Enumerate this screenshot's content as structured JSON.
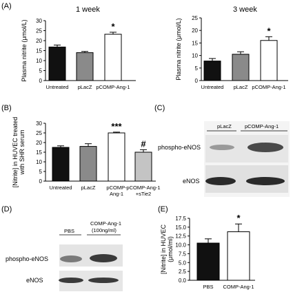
{
  "colors": {
    "black": "#111111",
    "gray": "#8a8a8a",
    "white": "#ffffff",
    "light": "#c4c4c4"
  },
  "chart_data": [
    {
      "panel": "(A)",
      "type": "bar",
      "title": "1 week",
      "ylabel": "Plasma nitrite (μmol/L)",
      "categories": [
        "Untreated",
        "pLacZ",
        "pCOMP-Ang-1"
      ],
      "values": [
        16.8,
        14.0,
        23.2
      ],
      "errors": [
        1.0,
        0.6,
        1.0
      ],
      "bar_colors": [
        "#111111",
        "#8a8a8a",
        "#ffffff"
      ],
      "ylim": [
        0,
        30
      ],
      "yticks": [
        "0",
        "5",
        "10",
        "15",
        "20",
        "25",
        "30"
      ],
      "annotations": [
        {
          "category": "pCOMP-Ang-1",
          "text": "*"
        }
      ]
    },
    {
      "panel": "",
      "type": "bar",
      "title": "3 week",
      "ylabel": "Plasma nitrite (μmol/L)",
      "categories": [
        "Untreated",
        "pLacZ",
        "pCOMP-Ang-1"
      ],
      "values": [
        7.8,
        10.5,
        16.0
      ],
      "errors": [
        1.0,
        1.0,
        1.5
      ],
      "bar_colors": [
        "#111111",
        "#8a8a8a",
        "#ffffff"
      ],
      "ylim": [
        0,
        25
      ],
      "yticks": [
        "0",
        "5",
        "10",
        "15",
        "20",
        "25"
      ],
      "annotations": [
        {
          "category": "pCOMP-Ang-1",
          "text": "*"
        }
      ]
    },
    {
      "panel": "(B)",
      "type": "bar",
      "title": "",
      "ylabel": "[Nitrite] in HUVEC treated with SHR serum",
      "categories": [
        "Untreated",
        "pLacZ",
        "pCOMP-Ang-1",
        "pCOMP-Ang-1 +sTie2"
      ],
      "values": [
        17.5,
        18.0,
        25.0,
        15.0
      ],
      "errors": [
        0.8,
        1.4,
        0.4,
        1.3
      ],
      "bar_colors": [
        "#111111",
        "#8a8a8a",
        "#ffffff",
        "#c4c4c4"
      ],
      "ylim": [
        0,
        30
      ],
      "yticks": [
        "0",
        "5",
        "10",
        "15",
        "20",
        "25",
        "30"
      ],
      "annotations": [
        {
          "category": "pCOMP-Ang-1",
          "text": "***"
        },
        {
          "category": "pCOMP-Ang-1 +sTie2",
          "text": "#"
        }
      ]
    },
    {
      "panel": "(E)",
      "type": "bar",
      "title": "",
      "ylabel": "[Nitrite] in HUVEC (μmol/ml)",
      "categories": [
        "PBS",
        "COMP-Ang-1"
      ],
      "values": [
        10.5,
        13.7
      ],
      "errors": [
        1.2,
        2.2
      ],
      "bar_colors": [
        "#111111",
        "#ffffff"
      ],
      "ylim": [
        0,
        17.5
      ],
      "yticks": [
        "0.0",
        "2.5",
        "5.0",
        "7.5",
        "10.0",
        "12.5",
        "15.0",
        "17.5"
      ],
      "annotations": [
        {
          "category": "COMP-Ang-1",
          "text": "*"
        }
      ]
    }
  ],
  "blots": [
    {
      "panel": "(C)",
      "columns": [
        "pLacZ",
        "pCOMP-Ang-1"
      ],
      "rows": [
        "phospho-eNOS",
        "eNOS"
      ]
    },
    {
      "panel": "(D)",
      "columns": [
        "PBS",
        "COMP-Ang-1 (100ng/ml)"
      ],
      "rows": [
        "phospho-eNOS",
        "eNOS"
      ]
    }
  ]
}
